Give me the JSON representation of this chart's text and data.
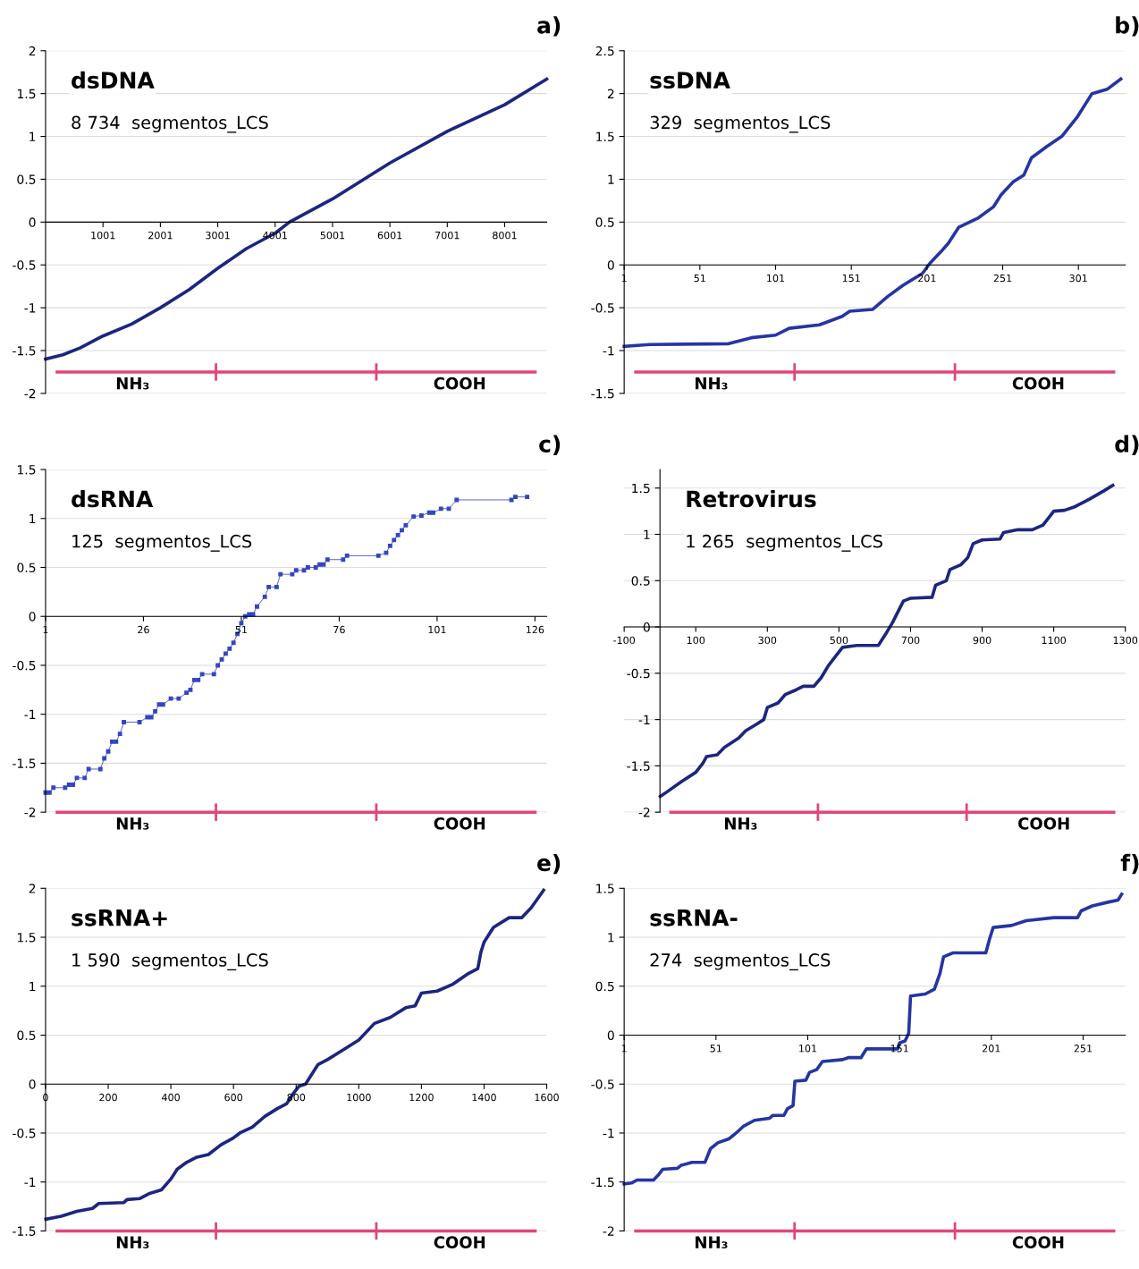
{
  "chart_data": [
    {
      "type": "line",
      "title": "a)",
      "subtitle": "dsDNA",
      "annotations": [
        "8 734  segmentos_LCS",
        "NH₃",
        "COOH"
      ],
      "grid": "y",
      "x": [
        1,
        300,
        600,
        1001,
        1500,
        2001,
        2500,
        3001,
        3500,
        4001,
        4250,
        5001,
        6001,
        7001,
        8001,
        8734
      ],
      "series": [
        {
          "color": "#1c2680",
          "values": [
            -1.6,
            -1.55,
            -1.47,
            -1.33,
            -1.19,
            -1.0,
            -0.79,
            -0.54,
            -0.31,
            -0.13,
            0.0,
            0.27,
            0.69,
            1.06,
            1.37,
            1.67
          ]
        }
      ],
      "xlim": [
        0,
        8734
      ],
      "xticks": [
        1001,
        2001,
        3001,
        4001,
        5001,
        6001,
        7001,
        8001
      ],
      "ylim": [
        -2,
        2
      ],
      "yticks": [
        -2,
        -1.5,
        -1,
        -0.5,
        0,
        0.5,
        1,
        1.5,
        2
      ],
      "ref_lines": [
        {
          "axis": "y",
          "value": -1.75,
          "color": "#e0467c"
        }
      ]
    },
    {
      "type": "line",
      "title": "b)",
      "subtitle": "ssDNA",
      "annotations": [
        "329  segmentos_LCS",
        "NH₃",
        "COOH"
      ],
      "grid": "y",
      "x": [
        1,
        18,
        70,
        85,
        101,
        110,
        130,
        145,
        150,
        165,
        175,
        185,
        198,
        203,
        210,
        215,
        222,
        235,
        245,
        250,
        258,
        265,
        270,
        280,
        290,
        300,
        310,
        320,
        329
      ],
      "series": [
        {
          "color": "#2535a3",
          "values": [
            -0.95,
            -0.93,
            -0.92,
            -0.85,
            -0.82,
            -0.74,
            -0.7,
            -0.6,
            -0.54,
            -0.52,
            -0.37,
            -0.24,
            -0.1,
            0.02,
            0.15,
            0.25,
            0.44,
            0.55,
            0.68,
            0.82,
            0.97,
            1.05,
            1.25,
            1.38,
            1.5,
            1.72,
            2.0,
            2.05,
            2.17
          ]
        }
      ],
      "xlim": [
        1,
        332
      ],
      "xticks": [
        1,
        51,
        101,
        151,
        201,
        251,
        301
      ],
      "ylim": [
        -1.5,
        2.5
      ],
      "yticks": [
        -1.5,
        -1,
        -0.5,
        0,
        0.5,
        1,
        1.5,
        2,
        2.5
      ],
      "ref_lines": [
        {
          "axis": "y",
          "value": -1.25,
          "color": "#e0467c"
        }
      ]
    },
    {
      "type": "line",
      "title": "c)",
      "subtitle": "dsRNA",
      "annotations": [
        "125  segmentos_LCS",
        "NH₃",
        "COOH"
      ],
      "grid": "y",
      "marker": "square",
      "x": [
        1,
        2,
        3,
        6,
        7,
        8,
        9,
        11,
        12,
        15,
        16,
        17,
        18,
        19,
        20,
        21,
        25,
        27,
        28,
        29,
        30,
        31,
        33,
        35,
        37,
        38,
        39,
        40,
        41,
        44,
        45,
        46,
        47,
        48,
        49,
        50,
        51,
        52,
        53,
        54,
        55,
        57,
        58,
        60,
        61,
        64,
        65,
        67,
        68,
        70,
        71,
        72,
        73,
        77,
        78,
        86,
        88,
        89,
        90,
        91,
        92,
        93,
        95,
        97,
        99,
        100,
        102,
        104,
        106,
        120,
        121,
        124
      ],
      "series": [
        {
          "color": "#3346c0",
          "values": [
            -1.8,
            -1.8,
            -1.75,
            -1.75,
            -1.72,
            -1.72,
            -1.65,
            -1.65,
            -1.56,
            -1.56,
            -1.45,
            -1.38,
            -1.28,
            -1.28,
            -1.2,
            -1.08,
            -1.08,
            -1.03,
            -1.03,
            -0.97,
            -0.9,
            -0.9,
            -0.84,
            -0.84,
            -0.78,
            -0.75,
            -0.65,
            -0.65,
            -0.59,
            -0.59,
            -0.5,
            -0.44,
            -0.38,
            -0.33,
            -0.27,
            -0.18,
            -0.07,
            0.0,
            0.02,
            0.02,
            0.1,
            0.2,
            0.3,
            0.3,
            0.43,
            0.43,
            0.47,
            0.47,
            0.5,
            0.5,
            0.53,
            0.53,
            0.58,
            0.58,
            0.62,
            0.62,
            0.65,
            0.72,
            0.78,
            0.83,
            0.88,
            0.93,
            1.02,
            1.03,
            1.06,
            1.06,
            1.1,
            1.1,
            1.19,
            1.19,
            1.22,
            1.22
          ]
        }
      ],
      "xlim": [
        1,
        129
      ],
      "xticks": [
        1,
        26,
        51,
        76,
        101,
        126
      ],
      "ylim": [
        -2,
        1.5
      ],
      "yticks": [
        -2,
        -1.5,
        -1,
        -0.5,
        0,
        0.5,
        1,
        1.5
      ],
      "ref_lines": [
        {
          "axis": "y",
          "value": -2,
          "color": "#e0467c"
        }
      ]
    },
    {
      "type": "line",
      "title": "d)",
      "subtitle": "Retrovirus",
      "annotations": [
        "1 265  segmentos_LCS",
        "NH₃",
        "COOH"
      ],
      "grid": "y",
      "x": [
        1,
        20,
        60,
        100,
        120,
        130,
        160,
        180,
        220,
        240,
        270,
        290,
        300,
        330,
        350,
        380,
        400,
        430,
        450,
        470,
        490,
        510,
        550,
        610,
        630,
        650,
        680,
        700,
        760,
        770,
        800,
        810,
        840,
        860,
        875,
        900,
        950,
        960,
        1000,
        1040,
        1070,
        1090,
        1100,
        1130,
        1160,
        1200,
        1240,
        1265
      ],
      "series": [
        {
          "color": "#1c2680",
          "values": [
            -1.83,
            -1.78,
            -1.67,
            -1.57,
            -1.47,
            -1.4,
            -1.38,
            -1.3,
            -1.2,
            -1.12,
            -1.05,
            -1.0,
            -0.87,
            -0.82,
            -0.73,
            -0.68,
            -0.64,
            -0.64,
            -0.55,
            -0.42,
            -0.32,
            -0.22,
            -0.2,
            -0.2,
            -0.08,
            0.05,
            0.28,
            0.31,
            0.32,
            0.45,
            0.5,
            0.62,
            0.67,
            0.75,
            0.9,
            0.94,
            0.95,
            1.02,
            1.05,
            1.05,
            1.1,
            1.2,
            1.25,
            1.26,
            1.3,
            1.38,
            1.47,
            1.53
          ]
        }
      ],
      "xlim": [
        -100,
        1300
      ],
      "xticks": [
        -100,
        100,
        300,
        500,
        700,
        900,
        1100,
        1300
      ],
      "ylim": [
        -2,
        1.7
      ],
      "yticks": [
        -2,
        -1.5,
        -1,
        -0.5,
        0,
        0.5,
        1,
        1.5
      ],
      "ref_lines": [
        {
          "axis": "y",
          "value": -2,
          "color": "#e0467c"
        }
      ]
    },
    {
      "type": "line",
      "title": "e)",
      "subtitle": "ssRNA+",
      "annotations": [
        "1 590  segmentos_LCS",
        "NH₃",
        "COOH"
      ],
      "grid": "y",
      "x": [
        1,
        50,
        100,
        150,
        170,
        250,
        260,
        300,
        330,
        370,
        400,
        420,
        450,
        480,
        520,
        560,
        600,
        620,
        660,
        700,
        740,
        770,
        790,
        810,
        830,
        850,
        870,
        900,
        950,
        1000,
        1050,
        1100,
        1150,
        1180,
        1200,
        1250,
        1300,
        1350,
        1380,
        1390,
        1400,
        1430,
        1480,
        1520,
        1550,
        1590
      ],
      "series": [
        {
          "color": "#1c2680",
          "values": [
            -1.38,
            -1.35,
            -1.3,
            -1.27,
            -1.22,
            -1.21,
            -1.18,
            -1.17,
            -1.12,
            -1.08,
            -0.97,
            -0.87,
            -0.8,
            -0.75,
            -0.72,
            -0.62,
            -0.55,
            -0.5,
            -0.44,
            -0.33,
            -0.25,
            -0.2,
            -0.1,
            -0.02,
            0.0,
            0.1,
            0.2,
            0.25,
            0.35,
            0.45,
            0.62,
            0.68,
            0.78,
            0.8,
            0.93,
            0.95,
            1.02,
            1.13,
            1.18,
            1.35,
            1.45,
            1.6,
            1.7,
            1.7,
            1.8,
            1.98
          ]
        }
      ],
      "xlim": [
        0,
        1600
      ],
      "xticks": [
        0,
        200,
        400,
        600,
        800,
        1000,
        1200,
        1400,
        1600
      ],
      "ylim": [
        -1.5,
        2
      ],
      "yticks": [
        -1.5,
        -1,
        -0.5,
        0,
        0.5,
        1,
        1.5,
        2
      ],
      "ref_lines": [
        {
          "axis": "y",
          "value": -1.5,
          "color": "#e0467c"
        }
      ]
    },
    {
      "type": "line",
      "title": "f)",
      "subtitle": "ssRNA-",
      "annotations": [
        "274  segmentos_LCS",
        "NH₃",
        "COOH"
      ],
      "grid": "y",
      "x": [
        1,
        5,
        8,
        17,
        20,
        22,
        30,
        32,
        38,
        45,
        48,
        52,
        58,
        62,
        66,
        72,
        80,
        82,
        88,
        90,
        93,
        94,
        100,
        102,
        106,
        109,
        120,
        123,
        130,
        133,
        150,
        151,
        154,
        156,
        157,
        165,
        170,
        173,
        175,
        180,
        198,
        200,
        202,
        212,
        220,
        235,
        248,
        250,
        256,
        265,
        270,
        272
      ],
      "series": [
        {
          "color": "#2535a3",
          "values": [
            -1.52,
            -1.51,
            -1.48,
            -1.48,
            -1.42,
            -1.37,
            -1.36,
            -1.33,
            -1.3,
            -1.3,
            -1.16,
            -1.1,
            -1.06,
            -1.0,
            -0.93,
            -0.87,
            -0.85,
            -0.82,
            -0.82,
            -0.75,
            -0.72,
            -0.47,
            -0.46,
            -0.38,
            -0.35,
            -0.27,
            -0.25,
            -0.23,
            -0.23,
            -0.14,
            -0.14,
            -0.08,
            -0.06,
            0.02,
            0.4,
            0.42,
            0.47,
            0.63,
            0.8,
            0.84,
            0.84,
            0.98,
            1.1,
            1.12,
            1.17,
            1.2,
            1.2,
            1.27,
            1.32,
            1.36,
            1.38,
            1.44
          ]
        }
      ],
      "xlim": [
        1,
        274
      ],
      "xticks": [
        1,
        51,
        101,
        151,
        201,
        251
      ],
      "ylim": [
        -2,
        1.5
      ],
      "yticks": [
        -2,
        -1.5,
        -1,
        -0.5,
        0,
        0.5,
        1,
        1.5
      ],
      "ref_lines": [
        {
          "axis": "y",
          "value": -2,
          "color": "#e0467c"
        }
      ]
    }
  ]
}
